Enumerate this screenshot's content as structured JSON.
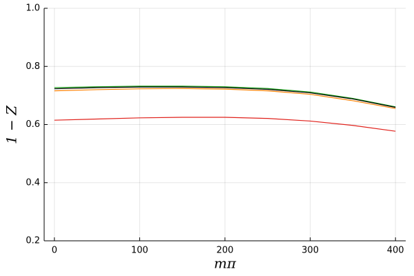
{
  "chart_data": {
    "type": "line",
    "xlabel": "mπ",
    "ylabel": "1 − Z",
    "x": [
      0,
      50,
      100,
      150,
      200,
      250,
      300,
      350,
      400
    ],
    "series": [
      {
        "color": "#1a9e1a",
        "values": [
          0.727,
          0.73,
          0.732,
          0.732,
          0.73,
          0.724,
          0.712,
          0.69,
          0.661
        ]
      },
      {
        "color": "#000000",
        "values": [
          0.723,
          0.727,
          0.729,
          0.729,
          0.727,
          0.721,
          0.709,
          0.688,
          0.659
        ]
      },
      {
        "color": "#ff8000",
        "values": [
          0.716,
          0.72,
          0.723,
          0.724,
          0.722,
          0.716,
          0.704,
          0.682,
          0.655
        ]
      },
      {
        "color": "#e0201a",
        "values": [
          0.615,
          0.619,
          0.623,
          0.625,
          0.625,
          0.621,
          0.612,
          0.597,
          0.577
        ]
      }
    ],
    "xlim": [
      -12,
      412
    ],
    "ylim": [
      0.2,
      1.0
    ],
    "xticks": [
      0,
      100,
      200,
      300,
      400
    ],
    "yticks": [
      0.2,
      0.4,
      0.6,
      0.8,
      {
        "value": 1,
        "label": "1.0"
      }
    ],
    "grid": true
  }
}
